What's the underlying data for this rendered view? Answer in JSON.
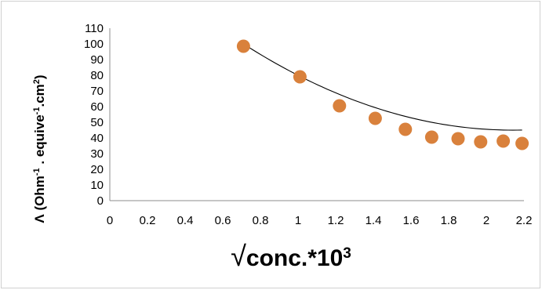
{
  "chart_data": {
    "type": "scatter",
    "x": [
      0.71,
      1.01,
      1.22,
      1.41,
      1.57,
      1.71,
      1.85,
      1.97,
      2.09,
      2.19
    ],
    "y": [
      98.5,
      79,
      60.5,
      52.5,
      45.5,
      40.5,
      39.5,
      37.5,
      38,
      36.5
    ],
    "trendline": {
      "type": "polynomial",
      "coefficients": [
        168.06,
        -114.95,
        26.84
      ],
      "x_range": [
        0.71,
        2.19
      ]
    },
    "xlim": [
      0,
      2.2
    ],
    "ylim": [
      0,
      110
    ],
    "x_ticks": [
      "0",
      "0.2",
      "0.4",
      "0.6",
      "0.8",
      "1",
      "1.2",
      "1.4",
      "1.6",
      "1.8",
      "2",
      "2.2"
    ],
    "y_ticks": [
      "0",
      "10",
      "20",
      "30",
      "40",
      "50",
      "60",
      "70",
      "80",
      "90",
      "100",
      "110"
    ],
    "xlabel": {
      "root": "√",
      "text": "conc.*10",
      "sup": "3"
    },
    "ylabel": {
      "lambda": "Λ",
      "open": " (Ohm",
      "sup1": "-1",
      "mid": " . equive",
      "sup2": "-1",
      "mid2": ".cm",
      "sup3": "2",
      "close": ")"
    },
    "grid": false,
    "legend": "none",
    "marker_color": "#d9813c",
    "line_color": "#000000"
  }
}
